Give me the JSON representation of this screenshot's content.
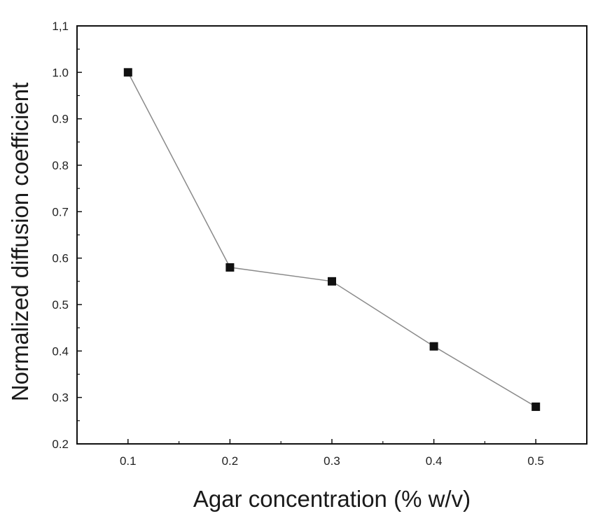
{
  "chart_data": {
    "type": "line",
    "title": "",
    "xlabel": "Agar concentration (% w/v)",
    "ylabel": "Normalized diffusion coefficient",
    "x": [
      0.1,
      0.2,
      0.3,
      0.4,
      0.5
    ],
    "series": [
      {
        "values": [
          1.0,
          0.58,
          0.55,
          0.41,
          0.28
        ]
      }
    ],
    "xlim": [
      0.05,
      0.55
    ],
    "ylim": [
      0.2,
      1.1
    ],
    "xticks": [
      0.1,
      0.2,
      0.3,
      0.4,
      0.5
    ],
    "xtick_labels": [
      "0.1",
      "0.2",
      "0.3",
      "0.4",
      "0.5"
    ],
    "yticks": [
      0.2,
      0.3,
      0.4,
      0.5,
      0.6,
      0.7,
      0.8,
      0.9,
      1.0,
      1.1
    ],
    "ytick_labels": [
      "0.2",
      "0.3",
      "0.4",
      "0.5",
      "0.6",
      "0.7",
      "0.8",
      "0.9",
      "1.0",
      "1,1"
    ],
    "marker": "square",
    "grid": false,
    "legend": "none",
    "colors": {
      "line": "#8a8a8a",
      "marker": "#111111",
      "axes": "#111111"
    }
  }
}
